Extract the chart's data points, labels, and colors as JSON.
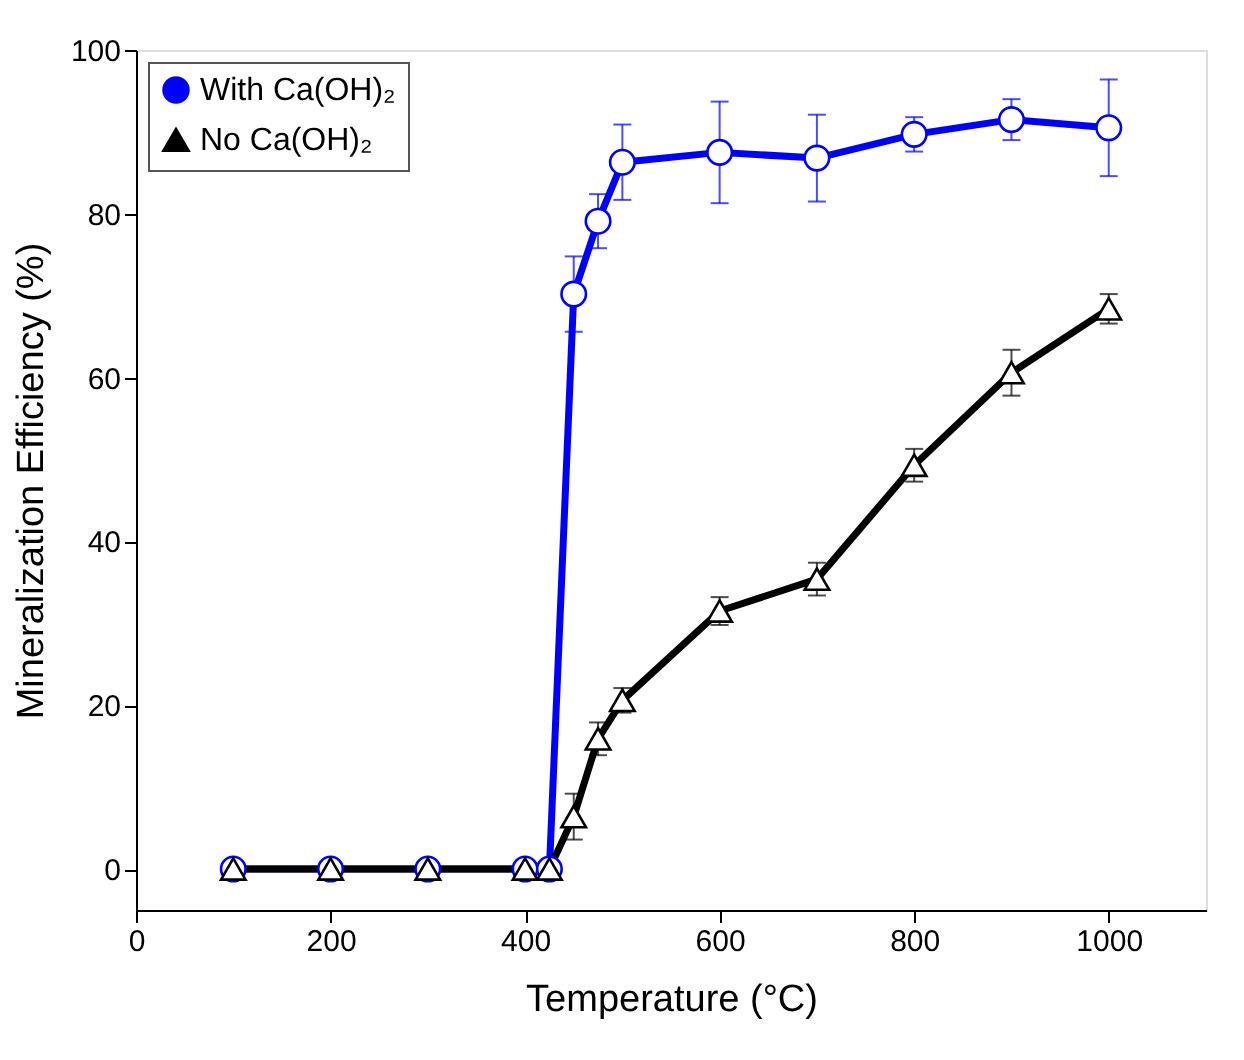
{
  "chart_data": {
    "type": "line",
    "xlabel": "Temperature (°C)",
    "ylabel": "Mineralization Efficiency (%)",
    "x": [
      100,
      200,
      300,
      400,
      425,
      450,
      475,
      500,
      600,
      700,
      800,
      900,
      1000
    ],
    "series": [
      {
        "name": "With Ca(OH)₂",
        "color": "#0000ff",
        "marker": "circle",
        "values": [
          0,
          0,
          0,
          0,
          0,
          70.2,
          79.1,
          86.3,
          87.5,
          86.8,
          89.7,
          91.5,
          90.5
        ],
        "errors": [
          null,
          null,
          null,
          null,
          null,
          4.6,
          3.3,
          4.6,
          6.2,
          5.3,
          2.1,
          2.5,
          5.9
        ]
      },
      {
        "name": "No Ca(OH)₂",
        "color": "#000000",
        "marker": "triangle",
        "values": [
          0,
          0,
          0,
          0,
          0,
          6.4,
          15.9,
          20.6,
          31.5,
          35.4,
          49.3,
          60.6,
          68.4
        ],
        "errors": [
          null,
          null,
          null,
          null,
          null,
          2.8,
          2.0,
          1.5,
          1.7,
          2.0,
          2.0,
          2.8,
          1.8
        ]
      }
    ],
    "xlim": [
      0,
      1100
    ],
    "xticks": [
      0,
      200,
      400,
      600,
      800,
      1000
    ],
    "ylim": [
      -5,
      100
    ],
    "yticks": [
      0,
      20,
      40,
      60,
      80,
      100
    ],
    "grid": false,
    "legend": "top left",
    "line_style": "solid"
  }
}
